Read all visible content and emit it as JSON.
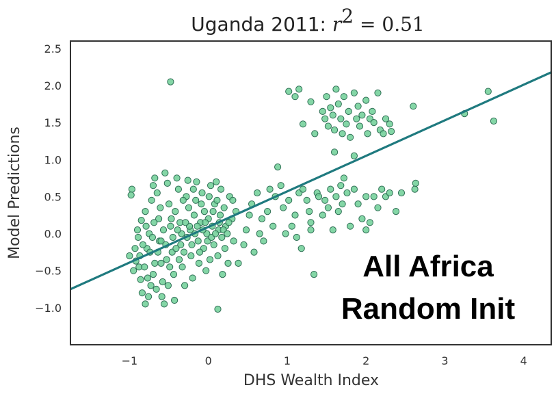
{
  "chart_data": {
    "type": "scatter",
    "title": {
      "prefix": "Uganda 2011: ",
      "var": "r",
      "exp": "2",
      "rel": " = ",
      "value": "0.51"
    },
    "xlabel": "DHS Wealth Index",
    "ylabel": "Model Predictions",
    "xlim": [
      -1.75,
      4.35
    ],
    "ylim": [
      -1.5,
      2.6
    ],
    "xticks": [
      -1,
      0,
      1,
      2,
      3,
      4
    ],
    "xtick_labels": [
      "−1",
      "0",
      "1",
      "2",
      "3",
      "4"
    ],
    "yticks": [
      -1.0,
      -0.5,
      0.0,
      0.5,
      1.0,
      1.5,
      2.0,
      2.5
    ],
    "ytick_labels": [
      "−1.0",
      "−0.5",
      "0.0",
      "0.5",
      "1.0",
      "1.5",
      "2.0",
      "2.5"
    ],
    "grid": false,
    "annotation": [
      "All Africa",
      "Random Init"
    ],
    "fit_line": {
      "slope": 0.48,
      "intercept": 0.09,
      "color": "#1f7a7f"
    },
    "point_color": "#6fcf97",
    "point_edge": "#2f6f55",
    "points": [
      [
        -0.48,
        2.05
      ],
      [
        -0.97,
        0.6
      ],
      [
        -0.98,
        0.52
      ],
      [
        -1.0,
        -0.3
      ],
      [
        -0.92,
        -0.37
      ],
      [
        -0.88,
        -0.45
      ],
      [
        -0.86,
        -0.62
      ],
      [
        -0.84,
        -0.8
      ],
      [
        -0.8,
        -0.95
      ],
      [
        -0.76,
        -0.85
      ],
      [
        -0.73,
        -0.7
      ],
      [
        -0.7,
        -0.55
      ],
      [
        -0.9,
        0.05
      ],
      [
        -0.85,
        0.18
      ],
      [
        -0.8,
        0.3
      ],
      [
        -0.78,
        -0.2
      ],
      [
        -0.75,
        0.0
      ],
      [
        -0.72,
        0.45
      ],
      [
        -0.7,
        0.65
      ],
      [
        -0.68,
        0.75
      ],
      [
        -0.65,
        0.55
      ],
      [
        -0.63,
        0.2
      ],
      [
        -0.62,
        -0.1
      ],
      [
        -0.6,
        -0.4
      ],
      [
        -0.58,
        -0.65
      ],
      [
        -0.56,
        -0.95
      ],
      [
        -0.55,
        0.82
      ],
      [
        -0.52,
        0.68
      ],
      [
        -0.5,
        0.4
      ],
      [
        -0.48,
        0.1
      ],
      [
        -0.46,
        -0.25
      ],
      [
        -0.44,
        -0.55
      ],
      [
        -0.42,
        0.3
      ],
      [
        -0.4,
        0.75
      ],
      [
        -0.38,
        0.6
      ],
      [
        -0.36,
        0.15
      ],
      [
        -0.35,
        -0.15
      ],
      [
        -0.33,
        -0.45
      ],
      [
        -0.3,
        -0.7
      ],
      [
        -0.28,
        0.5
      ],
      [
        -0.26,
        0.72
      ],
      [
        -0.25,
        0.35
      ],
      [
        -0.23,
        0.05
      ],
      [
        -0.22,
        -0.3
      ],
      [
        -0.2,
        -0.6
      ],
      [
        -0.18,
        0.25
      ],
      [
        -0.16,
        0.45
      ],
      [
        -0.15,
        0.7
      ],
      [
        -0.13,
        -0.1
      ],
      [
        -0.12,
        -0.4
      ],
      [
        -0.1,
        0.15
      ],
      [
        -0.08,
        0.55
      ],
      [
        -0.06,
        -0.2
      ],
      [
        -0.05,
        0.3
      ],
      [
        -0.03,
        -0.5
      ],
      [
        -0.02,
        0.0
      ],
      [
        0.0,
        0.2
      ],
      [
        0.02,
        -0.35
      ],
      [
        0.03,
        0.65
      ],
      [
        0.05,
        0.1
      ],
      [
        0.07,
        -0.15
      ],
      [
        0.08,
        0.4
      ],
      [
        0.1,
        0.7
      ],
      [
        0.12,
        -0.3
      ],
      [
        0.13,
        0.05
      ],
      [
        0.15,
        0.25
      ],
      [
        0.17,
        -0.05
      ],
      [
        0.18,
        -0.55
      ],
      [
        0.2,
        0.35
      ],
      [
        0.22,
        0.1
      ],
      [
        0.25,
        -0.4
      ],
      [
        0.27,
        0.5
      ],
      [
        0.3,
        0.2
      ],
      [
        0.32,
        -0.1
      ],
      [
        0.35,
        0.3
      ],
      [
        -0.68,
        -0.4
      ],
      [
        -0.64,
        -0.25
      ],
      [
        -0.6,
        -0.1
      ],
      [
        -0.57,
        0.05
      ],
      [
        -0.53,
        -0.35
      ],
      [
        -0.49,
        -0.45
      ],
      [
        -0.45,
        -0.05
      ],
      [
        -0.41,
        -0.2
      ],
      [
        -0.37,
        -0.35
      ],
      [
        -0.34,
        0.0
      ],
      [
        -0.31,
        -0.25
      ],
      [
        -0.27,
        -0.05
      ],
      [
        -0.24,
        0.1
      ],
      [
        -0.21,
        -0.15
      ],
      [
        -0.17,
        0.0
      ],
      [
        -0.14,
        0.1
      ],
      [
        -0.11,
        -0.25
      ],
      [
        -0.07,
        0.05
      ],
      [
        -0.04,
        0.15
      ],
      [
        -0.01,
        -0.1
      ],
      [
        0.04,
        -0.05
      ],
      [
        0.09,
        0.0
      ],
      [
        0.14,
        0.15
      ],
      [
        0.19,
        0.05
      ],
      [
        0.24,
        0.0
      ],
      [
        -0.95,
        -0.5
      ],
      [
        -0.93,
        -0.2
      ],
      [
        -0.89,
        -0.05
      ],
      [
        -0.87,
        -0.3
      ],
      [
        -0.83,
        -0.15
      ],
      [
        -0.81,
        -0.45
      ],
      [
        -0.79,
        0.1
      ],
      [
        -0.77,
        -0.6
      ],
      [
        -0.74,
        -0.25
      ],
      [
        -0.71,
        -0.05
      ],
      [
        -0.69,
        0.15
      ],
      [
        -0.66,
        -0.75
      ],
      [
        -0.61,
        0.35
      ],
      [
        -0.59,
        -0.85
      ],
      [
        -0.54,
        -0.15
      ],
      [
        -0.51,
        -0.7
      ],
      [
        -0.47,
        0.2
      ],
      [
        -0.43,
        -0.9
      ],
      [
        -0.39,
        0.05
      ],
      [
        -0.32,
        0.45
      ],
      [
        -0.29,
        0.15
      ],
      [
        -0.19,
        0.6
      ],
      [
        -0.09,
        0.4
      ],
      [
        0.01,
        0.5
      ],
      [
        0.06,
        0.3
      ],
      [
        0.11,
        0.45
      ],
      [
        0.16,
        0.6
      ],
      [
        0.21,
        -0.2
      ],
      [
        0.26,
        0.15
      ],
      [
        0.31,
        0.45
      ],
      [
        0.12,
        -1.02
      ],
      [
        0.38,
        -0.4
      ],
      [
        0.45,
        -0.15
      ],
      [
        0.48,
        0.05
      ],
      [
        0.52,
        0.25
      ],
      [
        0.55,
        0.4
      ],
      [
        0.58,
        -0.25
      ],
      [
        0.62,
        0.55
      ],
      [
        0.65,
        0.0
      ],
      [
        0.68,
        0.2
      ],
      [
        0.7,
        -0.1
      ],
      [
        0.75,
        0.3
      ],
      [
        0.78,
        0.6
      ],
      [
        0.82,
        0.1
      ],
      [
        0.85,
        0.5
      ],
      [
        0.88,
        0.9
      ],
      [
        0.92,
        0.65
      ],
      [
        0.95,
        0.35
      ],
      [
        0.98,
        0.0
      ],
      [
        1.02,
        0.45
      ],
      [
        1.06,
        0.1
      ],
      [
        1.1,
        0.25
      ],
      [
        1.12,
        -0.05
      ],
      [
        1.15,
        0.55
      ],
      [
        1.18,
        -0.2
      ],
      [
        1.2,
        0.6
      ],
      [
        1.25,
        0.45
      ],
      [
        1.28,
        0.3
      ],
      [
        1.3,
        0.15
      ],
      [
        1.34,
        -0.55
      ],
      [
        1.38,
        0.55
      ],
      [
        1.4,
        0.5
      ],
      [
        1.45,
        0.25
      ],
      [
        1.48,
        0.45
      ],
      [
        1.52,
        0.35
      ],
      [
        1.55,
        0.6
      ],
      [
        1.58,
        0.05
      ],
      [
        1.62,
        0.5
      ],
      [
        1.65,
        0.3
      ],
      [
        1.68,
        0.65
      ],
      [
        1.7,
        0.4
      ],
      [
        1.72,
        0.75
      ],
      [
        1.76,
        0.55
      ],
      [
        1.8,
        0.1
      ],
      [
        1.85,
        0.6
      ],
      [
        1.9,
        0.4
      ],
      [
        1.95,
        0.2
      ],
      [
        2.0,
        0.5
      ],
      [
        2.05,
        0.15
      ],
      [
        2.1,
        0.5
      ],
      [
        2.15,
        0.35
      ],
      [
        2.2,
        0.6
      ],
      [
        2.25,
        0.5
      ],
      [
        2.3,
        0.55
      ],
      [
        2.38,
        0.3
      ],
      [
        2.45,
        0.55
      ],
      [
        2.62,
        0.6
      ],
      [
        2.63,
        0.68
      ],
      [
        2.0,
        0.05
      ],
      [
        1.3,
        0.05
      ],
      [
        1.02,
        1.92
      ],
      [
        1.1,
        1.85
      ],
      [
        1.15,
        1.95
      ],
      [
        1.2,
        1.48
      ],
      [
        1.3,
        1.78
      ],
      [
        1.35,
        1.35
      ],
      [
        1.45,
        1.65
      ],
      [
        1.48,
        1.55
      ],
      [
        1.5,
        1.85
      ],
      [
        1.52,
        1.45
      ],
      [
        1.55,
        1.7
      ],
      [
        1.58,
        1.6
      ],
      [
        1.6,
        1.4
      ],
      [
        1.62,
        1.95
      ],
      [
        1.65,
        1.75
      ],
      [
        1.68,
        1.55
      ],
      [
        1.7,
        1.35
      ],
      [
        1.72,
        1.85
      ],
      [
        1.75,
        1.48
      ],
      [
        1.78,
        1.65
      ],
      [
        1.8,
        1.3
      ],
      [
        1.85,
        1.9
      ],
      [
        1.88,
        1.55
      ],
      [
        1.9,
        1.72
      ],
      [
        1.92,
        1.45
      ],
      [
        1.95,
        1.6
      ],
      [
        2.0,
        1.8
      ],
      [
        2.02,
        1.35
      ],
      [
        2.05,
        1.55
      ],
      [
        2.08,
        1.65
      ],
      [
        2.1,
        1.5
      ],
      [
        2.15,
        1.9
      ],
      [
        2.18,
        1.4
      ],
      [
        2.22,
        1.35
      ],
      [
        2.25,
        1.55
      ],
      [
        2.3,
        1.48
      ],
      [
        2.32,
        1.38
      ],
      [
        2.6,
        1.72
      ],
      [
        1.6,
        1.1
      ],
      [
        1.85,
        1.05
      ],
      [
        3.25,
        1.62
      ],
      [
        3.55,
        1.92
      ],
      [
        3.62,
        1.52
      ]
    ]
  }
}
